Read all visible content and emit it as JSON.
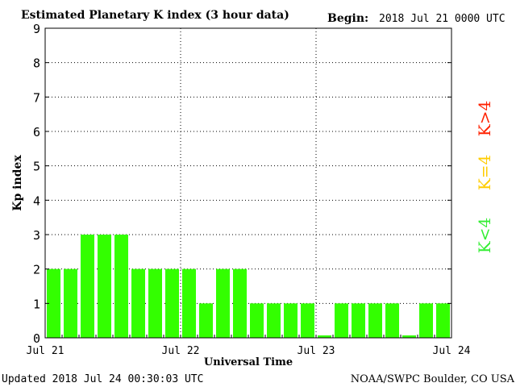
{
  "header": {
    "title": "Estimated Planetary K index (3 hour data)",
    "begin_label": "Begin:",
    "begin_value": "2018 Jul 21 0000 UTC"
  },
  "footer": {
    "updated": "Updated 2018 Jul 24 00:30:03 UTC",
    "source": "NOAA/SWPC Boulder, CO USA"
  },
  "side_legend": {
    "high": {
      "text": "K>4",
      "color": "#ff2200"
    },
    "equal": {
      "text": "K=4",
      "color": "#ffcc00"
    },
    "low": {
      "text": "K<4",
      "color": "#33ee33"
    }
  },
  "chart_data": {
    "type": "bar",
    "title": "Estimated Planetary K index (3 hour data)",
    "xlabel": "Universal Time",
    "ylabel": "Kp index",
    "ylim": [
      0,
      9
    ],
    "yticks": [
      "0",
      "1",
      "2",
      "3",
      "4",
      "5",
      "6",
      "7",
      "8",
      "9"
    ],
    "xticks": [
      "Jul 21",
      "Jul 22",
      "Jul 23",
      "Jul 24"
    ],
    "grid": true,
    "bar_color": "#33ff00",
    "values": [
      2,
      2,
      3,
      3,
      3,
      2,
      2,
      2,
      2,
      1,
      2,
      2,
      1,
      1,
      1,
      1,
      0.07,
      1,
      1,
      1,
      1,
      0.07,
      1,
      1
    ]
  }
}
